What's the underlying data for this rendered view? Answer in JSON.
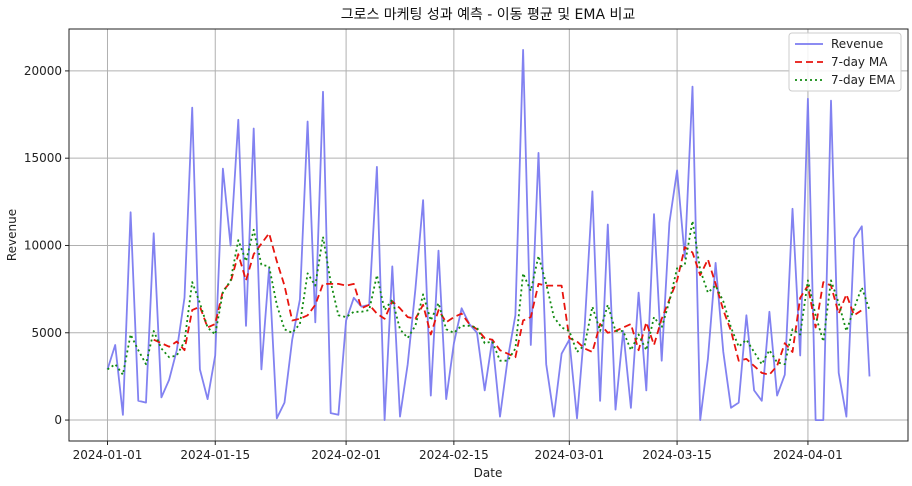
{
  "chart_data": {
    "type": "line",
    "title": "그로스 마케팅 성과 예측 - 이동 평균 및 EMA 비교",
    "xlabel": "Date",
    "ylabel": "Revenue",
    "x_start": "2024-01-01",
    "x_end": "2024-04-09",
    "xlim": [
      "2023-12-27",
      "2024-04-14"
    ],
    "ylim": [
      -1200,
      22400
    ],
    "x_ticks": [
      "2024-01-01",
      "2024-01-15",
      "2024-02-01",
      "2024-02-15",
      "2024-03-01",
      "2024-03-15",
      "2024-04-01"
    ],
    "y_ticks": [
      0,
      5000,
      10000,
      15000,
      20000
    ],
    "grid": true,
    "legend_position": "top-right",
    "series": [
      {
        "name": "Revenue",
        "color": "#7b7bf0",
        "style": "solid",
        "values": [
          2900,
          4300,
          300,
          11900,
          1100,
          1000,
          10700,
          1300,
          2300,
          4000,
          7000,
          17900,
          2900,
          1200,
          3700,
          14400,
          10000,
          17200,
          5400,
          16700,
          2900,
          8700,
          100,
          1000,
          4600,
          6900,
          17100,
          5600,
          18800,
          400,
          300,
          5700,
          7000,
          6500,
          6600,
          14500,
          0,
          8800,
          200,
          3200,
          7500,
          12600,
          1400,
          9700,
          1200,
          4400,
          6400,
          5500,
          5000,
          1700,
          4600,
          200,
          3500,
          6000,
          21200,
          4300,
          15300,
          3200,
          200,
          3800,
          4600,
          100,
          5400,
          13100,
          1100,
          11200,
          600,
          5100,
          700,
          7300,
          1700,
          11800,
          3400,
          11300,
          14300,
          9300,
          19100,
          0,
          3500,
          9000,
          3900,
          700,
          1000,
          6000,
          1700,
          1100,
          6200,
          1400,
          2600,
          12100,
          3700,
          18400,
          0,
          0,
          18300,
          2700,
          200,
          10400,
          11100,
          2500
        ]
      },
      {
        "name": "7-day MA",
        "color": "#e8140e",
        "style": "dashed",
        "values": [
          null,
          null,
          null,
          null,
          null,
          null,
          4600,
          4400,
          4200,
          4500,
          4000,
          6300,
          6500,
          5300,
          5500,
          7400,
          7900,
          9500,
          8000,
          9500,
          10100,
          10700,
          9100,
          7700,
          5700,
          5800,
          6000,
          6600,
          7800,
          7800,
          7800,
          7700,
          7800,
          6400,
          6600,
          6100,
          5800,
          6800,
          6400,
          5900,
          5800,
          6600,
          4900,
          6300,
          5600,
          5900,
          6100,
          5500,
          5200,
          4700,
          4600,
          4000,
          3800,
          3600,
          5700,
          5900,
          7800,
          7700,
          7700,
          7700,
          4700,
          4500,
          4100,
          3900,
          5500,
          5000,
          5100,
          5300,
          5500,
          4000,
          5600,
          4300,
          5800,
          6900,
          8000,
          9900,
          9600,
          8300,
          9200,
          7800,
          6300,
          5100,
          3400,
          3500,
          3100,
          2700,
          2600,
          3100,
          4400,
          3900,
          7000,
          7700,
          5300,
          7900,
          7700,
          6100,
          7200,
          6000,
          6300
        ]
      },
      {
        "name": "7-day EMA",
        "color": "#118a11",
        "style": "dotted",
        "values": [
          2900,
          3200,
          2600,
          4900,
          4000,
          3200,
          5100,
          4100,
          3600,
          3700,
          4500,
          7900,
          6700,
          5300,
          4900,
          7300,
          8000,
          10300,
          9100,
          10900,
          8900,
          8800,
          6600,
          5200,
          5000,
          5500,
          8400,
          7700,
          10500,
          7900,
          6000,
          5900,
          6200,
          6200,
          6300,
          8300,
          6300,
          6900,
          5200,
          4700,
          5400,
          7200,
          5700,
          6700,
          5200,
          5000,
          5400,
          5400,
          5300,
          4400,
          4500,
          3400,
          3400,
          4100,
          8400,
          7400,
          9400,
          7800,
          5900,
          5300,
          5100,
          3900,
          4300,
          6500,
          5100,
          6600,
          5100,
          5100,
          4000,
          4900,
          4000,
          5900,
          5300,
          6800,
          8700,
          8900,
          11400,
          8600,
          7300,
          7700,
          6800,
          5300,
          4200,
          4600,
          3900,
          3200,
          4000,
          3300,
          3200,
          5200,
          4900,
          8000,
          6000,
          4500,
          8000,
          6700,
          5100,
          6400,
          7600,
          6300
        ]
      }
    ]
  }
}
